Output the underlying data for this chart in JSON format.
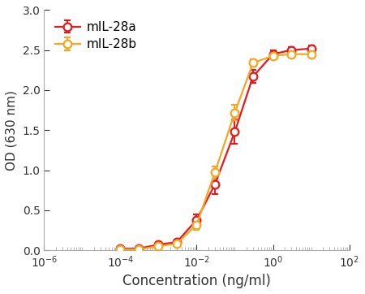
{
  "series": [
    {
      "label": "mIL-28a",
      "color": "#e8191a",
      "x": [
        0.0001,
        0.0003,
        0.001,
        0.003,
        0.01,
        0.03,
        0.1,
        0.3,
        1.0,
        3.0,
        10.0
      ],
      "y": [
        0.02,
        0.02,
        0.07,
        0.1,
        0.38,
        0.82,
        1.48,
        2.17,
        2.45,
        2.5,
        2.52
      ],
      "yerr": [
        0.01,
        0.01,
        0.02,
        0.02,
        0.07,
        0.12,
        0.15,
        0.08,
        0.05,
        0.04,
        0.04
      ]
    },
    {
      "label": "mIL-28b",
      "color": "#f5a623",
      "x": [
        0.0001,
        0.0003,
        0.001,
        0.003,
        0.01,
        0.03,
        0.1,
        0.3,
        1.0,
        3.0,
        10.0
      ],
      "y": [
        0.01,
        0.01,
        0.05,
        0.08,
        0.32,
        0.97,
        1.72,
        2.34,
        2.43,
        2.45,
        2.45
      ],
      "yerr": [
        0.01,
        0.01,
        0.02,
        0.02,
        0.07,
        0.08,
        0.1,
        0.05,
        0.04,
        0.03,
        0.03
      ]
    }
  ],
  "xlabel": "Concentration (ng/ml)",
  "ylabel": "OD (630 nm)",
  "xlim": [
    1e-06,
    100.0
  ],
  "ylim": [
    0.0,
    3.0
  ],
  "yticks": [
    0.0,
    0.5,
    1.0,
    1.5,
    2.0,
    2.5,
    3.0
  ],
  "xtick_positions": [
    -6,
    -4,
    -2,
    0,
    2
  ],
  "legend_loc": "upper left",
  "markersize": 7,
  "linewidth": 1.6,
  "capsize": 3,
  "elinewidth": 1.4,
  "capthick": 1.4,
  "markeredgewidth": 1.6,
  "spine_color": "#aaaaaa",
  "tick_color": "#aaaaaa",
  "label_color": "#333333",
  "background_color": "#ffffff",
  "xlabel_fontsize": 12,
  "ylabel_fontsize": 11,
  "tick_fontsize": 10,
  "legend_fontsize": 11
}
